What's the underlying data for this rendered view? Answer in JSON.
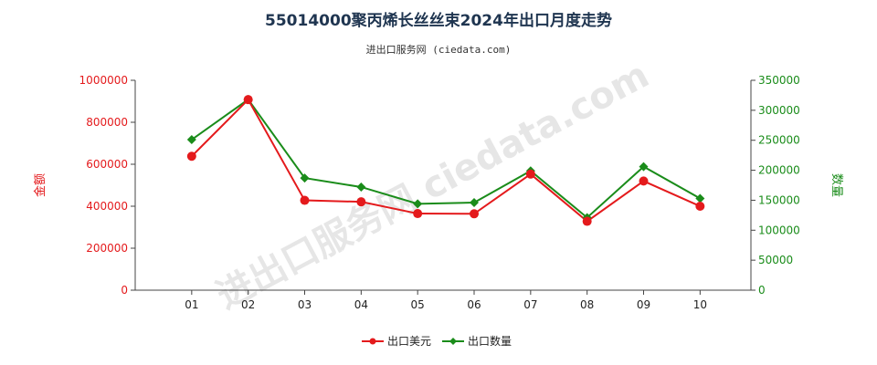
{
  "title": "55014000聚丙烯长丝丝束2024年出口月度走势",
  "subtitle": "进出口服务网 (ciedata.com)",
  "watermark": "进出口服务网 ciedata.com",
  "colors": {
    "series1": "#e41a1c",
    "series2": "#1a8c1a",
    "left_axis": "#e41a1c",
    "right_axis": "#1a8c1a"
  },
  "chart_data": {
    "type": "line",
    "categories": [
      "01",
      "02",
      "03",
      "04",
      "05",
      "06",
      "07",
      "08",
      "09",
      "10"
    ],
    "series": [
      {
        "name": "出口美元",
        "axis": "left",
        "values": [
          638000,
          908000,
          428000,
          421000,
          365000,
          364000,
          553000,
          328000,
          520000,
          400000
        ]
      },
      {
        "name": "出口数量",
        "axis": "right",
        "values": [
          251000,
          318000,
          187000,
          172000,
          144000,
          146000,
          199000,
          121000,
          206000,
          153000
        ]
      }
    ],
    "ylabel": "金额",
    "y2label": "数量",
    "ylim": [
      0,
      1000000
    ],
    "y2lim": [
      0,
      350000
    ],
    "yticks": [
      "0",
      "200000",
      "400000",
      "600000",
      "800000",
      "1000000"
    ],
    "y2ticks": [
      "0",
      "50000",
      "100000",
      "150000",
      "200000",
      "250000",
      "300000",
      "350000"
    ],
    "legend_position": "bottom"
  }
}
